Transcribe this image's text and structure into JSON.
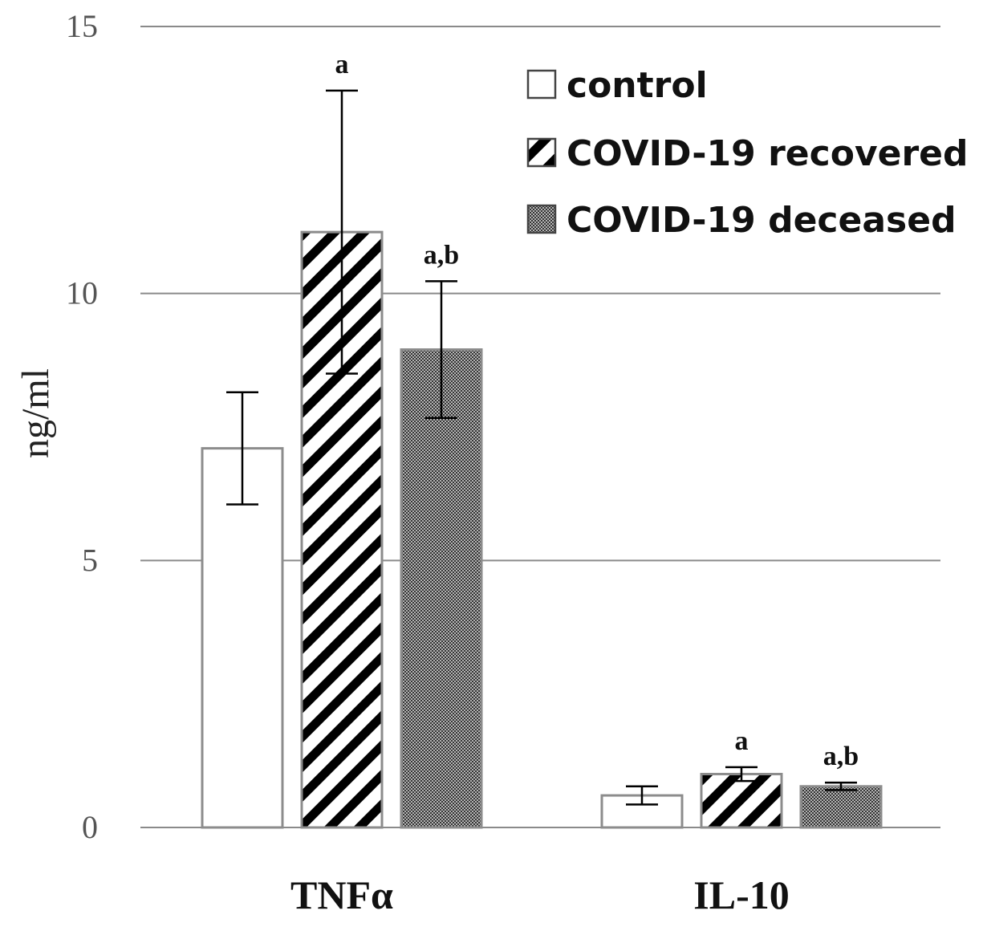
{
  "chart_data": {
    "type": "bar",
    "ylabel": "ng/ml",
    "ylim": [
      0,
      15
    ],
    "yticks": [
      0,
      5,
      10,
      15
    ],
    "ytick_labels": [
      "0",
      "5",
      "10",
      "15"
    ],
    "grid": true,
    "legend_position": "top-right",
    "categories": [
      "TNFα",
      "IL-10"
    ],
    "series": [
      {
        "name": "control",
        "fill": "none",
        "values": [
          7.1,
          0.6
        ],
        "errors": [
          1.05,
          0.17
        ],
        "annotations": [
          "",
          ""
        ]
      },
      {
        "name": "COVID-19 recovered",
        "fill": "diagonal-stripes",
        "values": [
          11.15,
          1.0
        ],
        "errors": [
          2.65,
          0.13
        ],
        "annotations": [
          "a",
          "a"
        ]
      },
      {
        "name": "COVID-19 deceased",
        "fill": "dots",
        "values": [
          8.95,
          0.77
        ],
        "errors": [
          1.28,
          0.07
        ],
        "annotations": [
          "a,b",
          "a,b"
        ]
      }
    ]
  },
  "colors": {
    "grid": "#8a8a8a",
    "bar_outline": "#8c8c8c",
    "stripe": "#000000",
    "dot": "#333333",
    "error_bar": "#000000"
  }
}
